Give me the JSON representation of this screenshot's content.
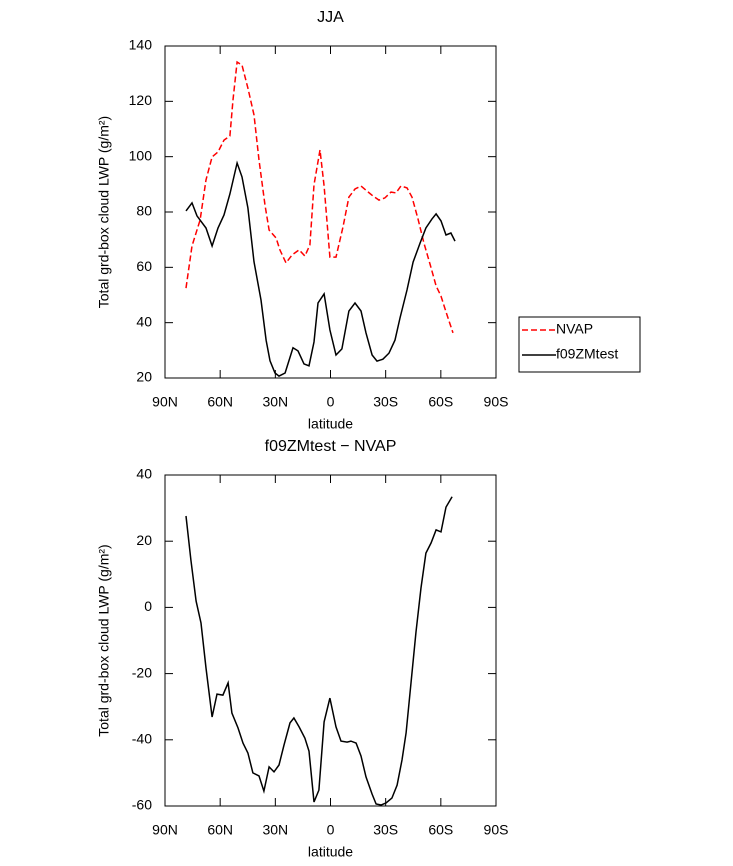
{
  "chart_data": [
    {
      "type": "line",
      "title": "JJA",
      "xlabel": "latitude",
      "ylabel": "Total grd-box cloud LWP (g/m²)",
      "xlim": [
        90,
        -90
      ],
      "xticks": [
        {
          "value": 90,
          "label": "90N"
        },
        {
          "value": 60,
          "label": "60N"
        },
        {
          "value": 30,
          "label": "30N"
        },
        0,
        {
          "value": -30,
          "label": "30S"
        },
        {
          "value": -60,
          "label": "60S"
        },
        {
          "value": -90,
          "label": "90S"
        }
      ],
      "ylim": [
        20,
        140
      ],
      "yticks": [
        20,
        40,
        60,
        80,
        100,
        120,
        140
      ],
      "legend": "right",
      "series": [
        {
          "name": "NVAP",
          "color": "#ff0000",
          "linestyle": "dashed",
          "x": [
            78.6,
            75.3,
            70.9,
            67.7,
            64.4,
            61.2,
            57.9,
            54.7,
            53,
            50.8,
            48.1,
            44.9,
            41.6,
            38.9,
            35.6,
            33.4,
            29.6,
            27.5,
            24.2,
            20.9,
            17.1,
            13.9,
            11.2,
            9,
            5.7,
            3.5,
            0.3,
            -3,
            -6.8,
            -10,
            -13.3,
            -16.6,
            -19.8,
            -23.1,
            -26.4,
            -29.6,
            -32.9,
            -35.6,
            -38.3,
            -41.6,
            -44.3,
            -47.6,
            -50.8,
            -54.1,
            -57.4,
            -60.1,
            -62.8,
            -66.6
          ],
          "values": [
            52.5,
            67.7,
            77.1,
            91.6,
            99.9,
            101.7,
            106,
            107.5,
            120.5,
            134.2,
            133.1,
            124.8,
            115.1,
            98.8,
            82.5,
            73.5,
            70.6,
            66.3,
            61.6,
            64.5,
            66.3,
            64.1,
            68.1,
            89.8,
            102.4,
            89.4,
            63.7,
            63.7,
            74.6,
            85.4,
            88.3,
            89.4,
            87.6,
            85.8,
            84.3,
            85.1,
            87.2,
            86.9,
            89.4,
            88.7,
            85.4,
            77.5,
            68.8,
            61.2,
            53.3,
            49.6,
            43.9,
            36.3
          ]
        },
        {
          "name": "f09ZMtest",
          "color": "#000000",
          "linestyle": "solid",
          "x": [
            78.6,
            75.3,
            72.6,
            67.7,
            64.4,
            61.2,
            57.9,
            54.7,
            50.8,
            48.1,
            44.9,
            41.6,
            37.8,
            35,
            32.9,
            30.2,
            28,
            24.7,
            20.4,
            17.7,
            14.4,
            11.7,
            9,
            6.8,
            3.5,
            0.3,
            -3,
            -6.2,
            -10,
            -13.3,
            -16.6,
            -19.3,
            -22.6,
            -25.3,
            -28.5,
            -31.8,
            -35.1,
            -37.8,
            -41.6,
            -44.9,
            -48.7,
            -51.9,
            -55.2,
            -57.4,
            -60.1,
            -62.8,
            -65.5,
            -67.7
          ],
          "values": [
            80.4,
            83.3,
            78.6,
            74.2,
            67.7,
            74.2,
            78.9,
            86.5,
            97.7,
            92.7,
            81.5,
            62,
            48.2,
            33.7,
            26.2,
            21.8,
            20.7,
            21.8,
            30.9,
            29.8,
            25.1,
            24.4,
            33,
            47.1,
            50.4,
            37.4,
            28.3,
            30.5,
            44.2,
            47.1,
            44.2,
            36.3,
            28.3,
            26.1,
            26.8,
            29,
            33.7,
            41.7,
            51.8,
            61.9,
            68.8,
            74.2,
            77.5,
            79.3,
            76.8,
            71.7,
            72.4,
            69.5
          ]
        }
      ]
    },
    {
      "type": "line",
      "title": "f09ZMtest − NVAP",
      "xlabel": "latitude",
      "ylabel": "Total grd-box cloud LWP (g/m²)",
      "xlim": [
        90,
        -90
      ],
      "xticks": [
        {
          "value": 90,
          "label": "90N"
        },
        {
          "value": 60,
          "label": "60N"
        },
        {
          "value": 30,
          "label": "30N"
        },
        0,
        {
          "value": -30,
          "label": "30S"
        },
        {
          "value": -60,
          "label": "60S"
        },
        {
          "value": -90,
          "label": "90S"
        }
      ],
      "ylim": [
        -60,
        40
      ],
      "yticks": [
        -60,
        -40,
        -20,
        0,
        20,
        40
      ],
      "series": [
        {
          "color": "#000000",
          "linestyle": "solid",
          "x": [
            78.6,
            75.9,
            73.1,
            70.4,
            67.7,
            64.4,
            61.7,
            58.5,
            55.7,
            53.6,
            50.3,
            47.6,
            44.9,
            42.2,
            38.9,
            36.2,
            33.4,
            30.7,
            28,
            25.3,
            22,
            19.9,
            17.1,
            13.9,
            11.7,
            9,
            6.3,
            3.5,
            0.3,
            -3,
            -5.7,
            -9,
            -11.1,
            -13.9,
            -16.6,
            -19.3,
            -22.6,
            -24.8,
            -27.5,
            -30.2,
            -33.4,
            -36.2,
            -38.9,
            -41.1,
            -43.8,
            -46.5,
            -49.2,
            -51.9,
            -54.7,
            -57.4,
            -60.1,
            -62.8,
            -66.1
          ],
          "values": [
            27.6,
            14.3,
            1.9,
            -4.7,
            -18.3,
            -33.1,
            -26.2,
            -26.5,
            -22.8,
            -31.9,
            -36.4,
            -41,
            -44,
            -50,
            -50.9,
            -55.5,
            -48.2,
            -49.7,
            -47.6,
            -41.6,
            -34.9,
            -33.4,
            -36.1,
            -39.5,
            -43.4,
            -58.8,
            -55.2,
            -34.6,
            -27.4,
            -36.1,
            -40.4,
            -40.7,
            -40.4,
            -41,
            -44.9,
            -51.2,
            -56.4,
            -59.4,
            -59.7,
            -59.1,
            -57.6,
            -53.7,
            -46.1,
            -37.9,
            -22.8,
            -7.4,
            5.9,
            16.4,
            19.5,
            23.4,
            22.8,
            30.3,
            33.4
          ]
        }
      ]
    }
  ]
}
